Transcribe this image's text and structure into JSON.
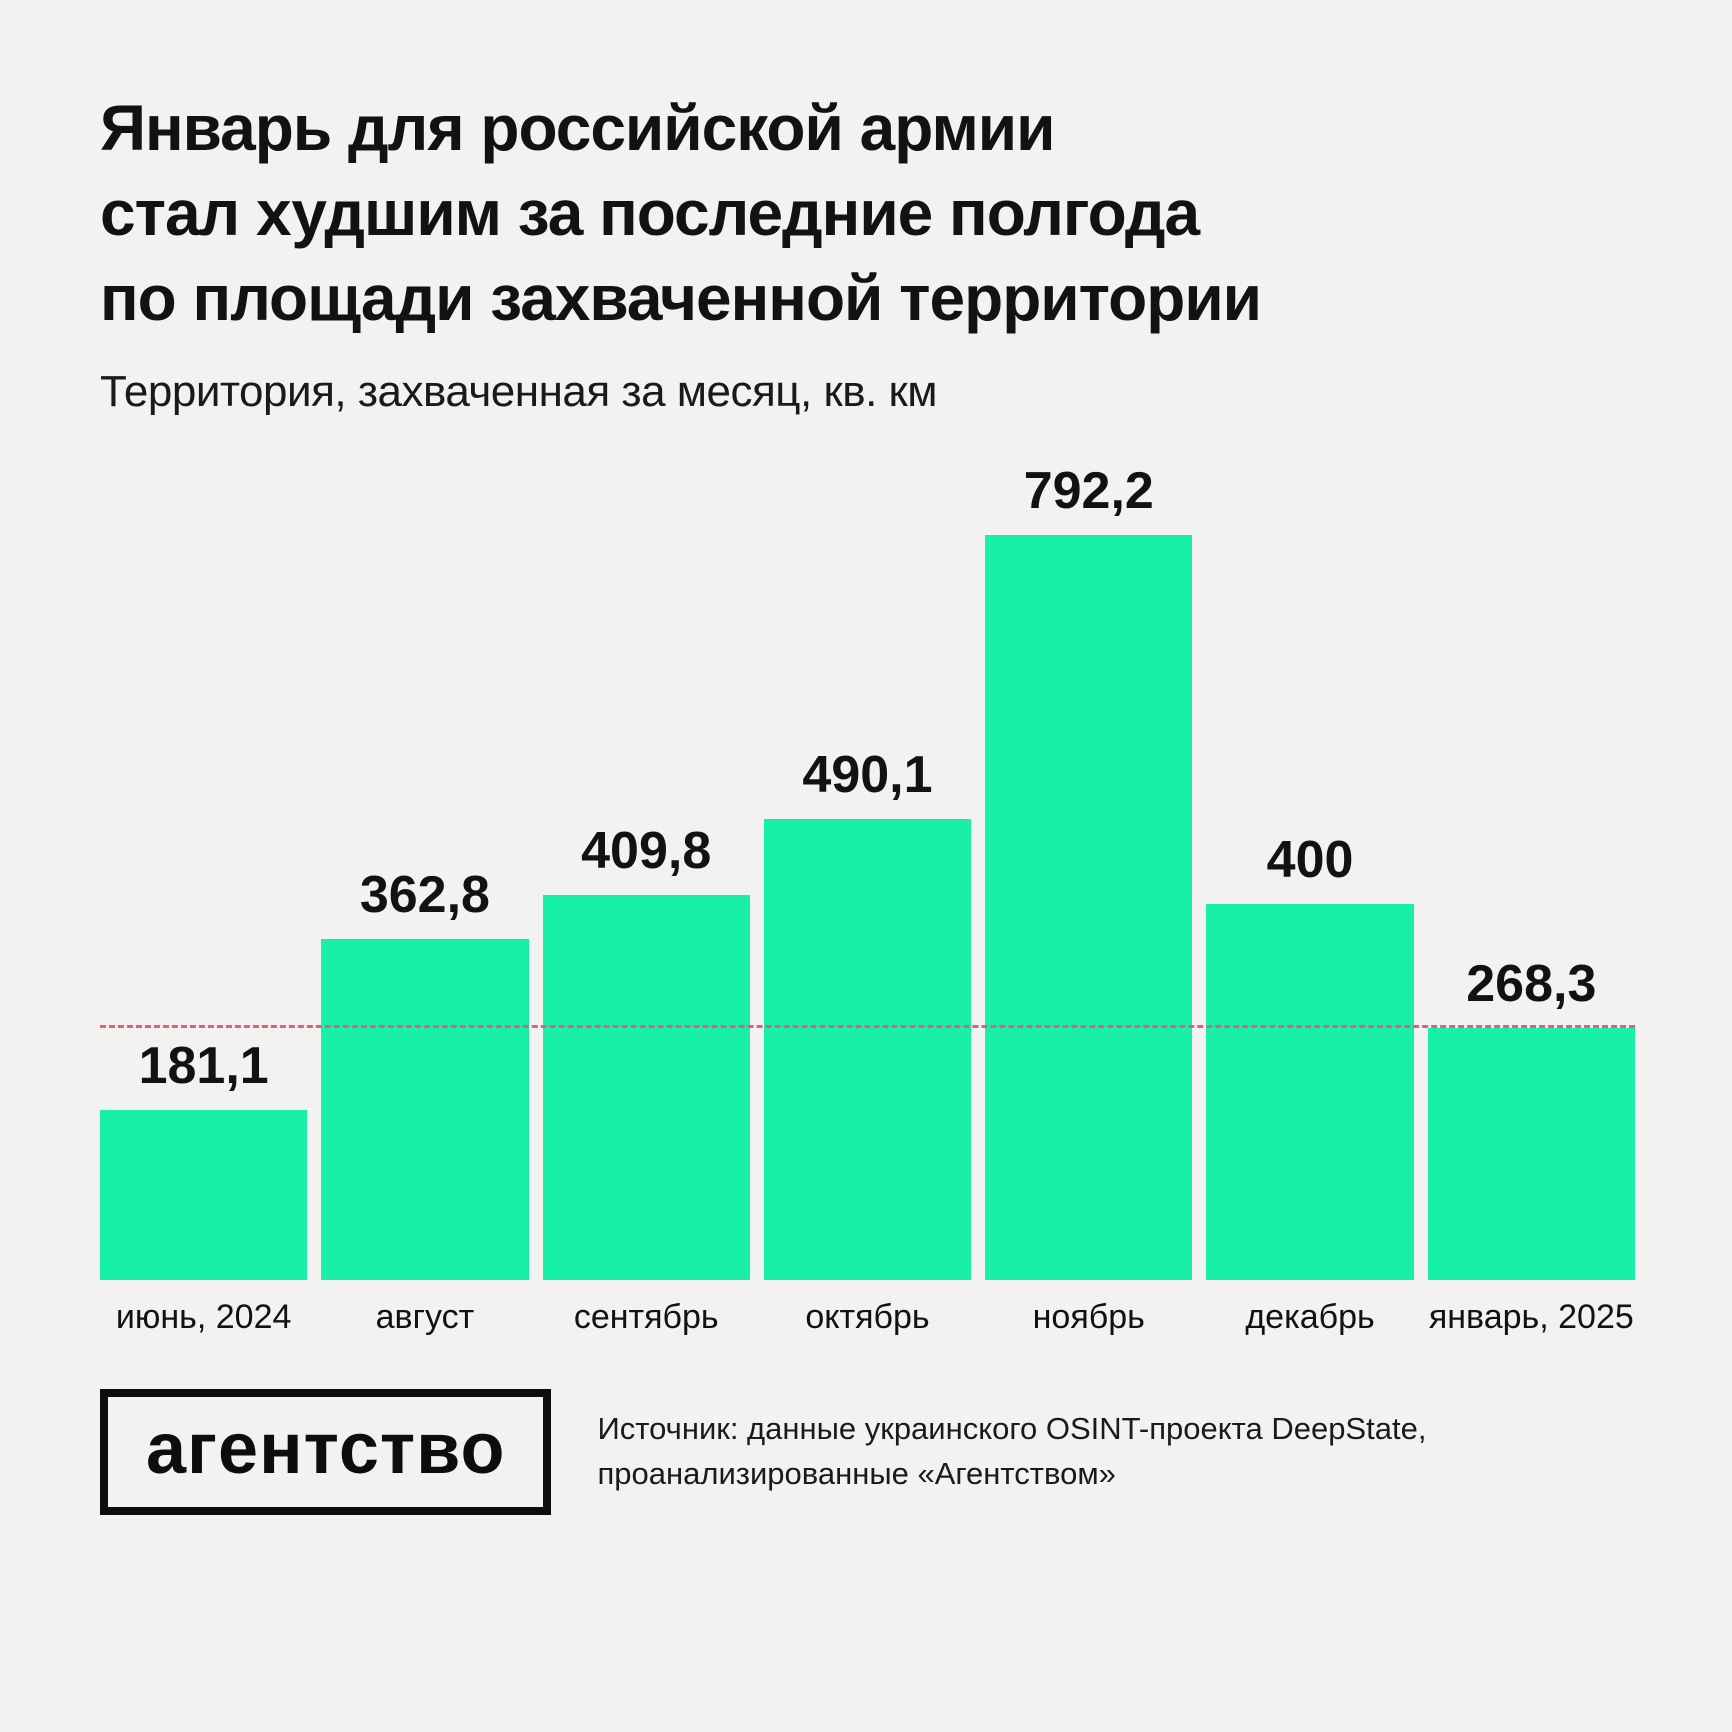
{
  "page": {
    "background_color": "#f2f2f0"
  },
  "header": {
    "title_lines": [
      "Январь для российской армии",
      "стал худшим за последние полгода",
      "по площади захваченной территории"
    ],
    "subtitle": "Территория, захваченная за месяц, кв. км"
  },
  "chart_data": {
    "type": "bar",
    "categories": [
      "июнь, 2024",
      "август",
      "сентябрь",
      "октябрь",
      "ноябрь",
      "декабрь",
      "январь, 2025"
    ],
    "values": [
      181.1,
      362.8,
      409.8,
      490.1,
      792.2,
      400,
      268.3
    ],
    "value_labels": [
      "181,1",
      "362,8",
      "409,8",
      "490,1",
      "792,2",
      "400",
      "268,3"
    ],
    "title": "Территория, захваченная за месяц, кв. км",
    "xlabel": "",
    "ylabel": "кв. км",
    "ylim": [
      0,
      792.2
    ],
    "grid": false,
    "legend": false,
    "bar_color": "#17f0a6",
    "reference_line": {
      "value": 268.3,
      "color": "#e0607a",
      "style": "dashed"
    }
  },
  "footer": {
    "logo_text": "агентство",
    "source_lines": [
      "Источник: данные украинского OSINT-проекта DeepState,",
      "проанализированные «Агентством»"
    ]
  }
}
